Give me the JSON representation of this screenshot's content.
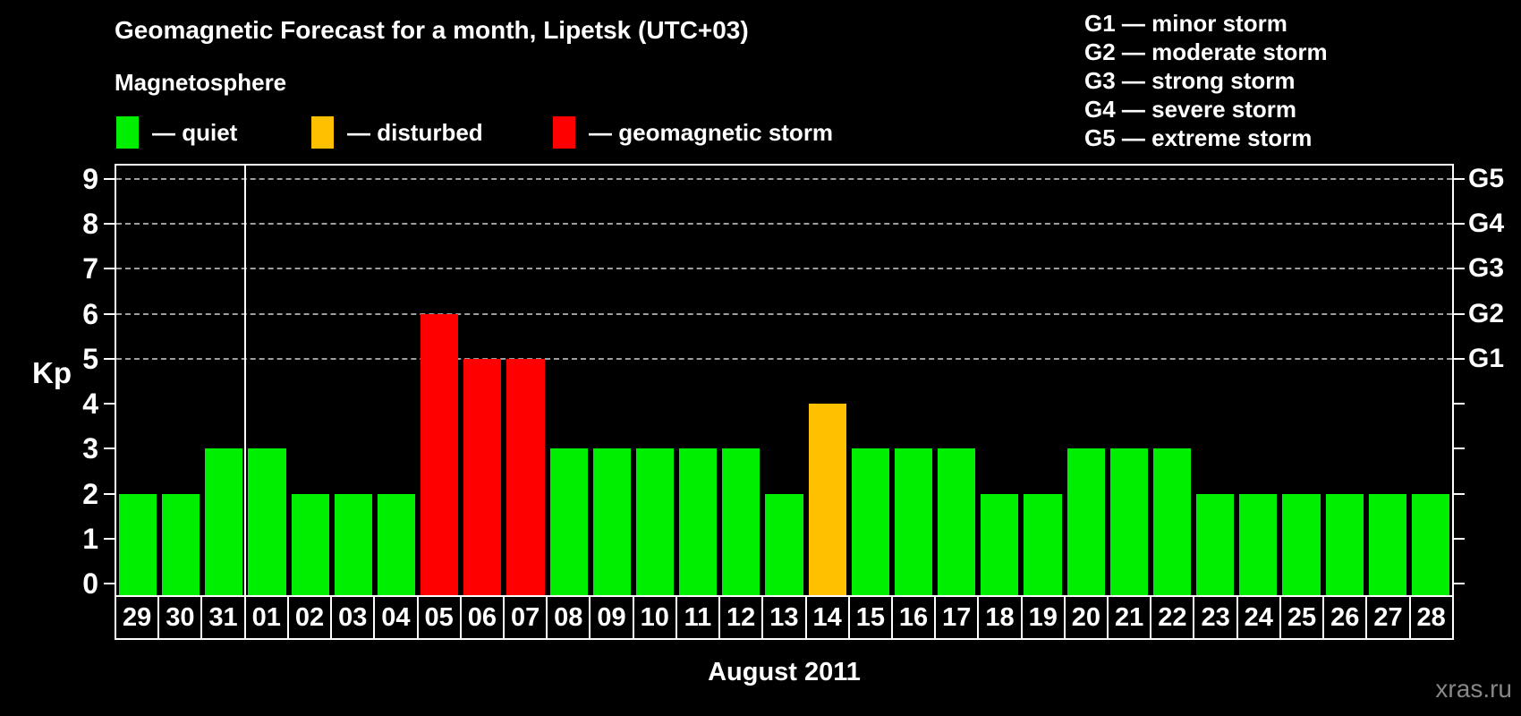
{
  "title": "Geomagnetic Forecast for a month, Lipetsk (UTC+03)",
  "legend": {
    "heading": "Magnetosphere",
    "items": [
      {
        "status": "quiet",
        "label": "— quiet",
        "color": "#00ee00"
      },
      {
        "status": "disturbed",
        "label": "— disturbed",
        "color": "#ffc000"
      },
      {
        "status": "storm",
        "label": "— geomagnetic storm",
        "color": "#ff0000"
      }
    ]
  },
  "g_scale_legend": [
    "G1 — minor storm",
    "G2 — moderate storm",
    "G3 — strong storm",
    "G4 — severe storm",
    "G5 — extreme storm"
  ],
  "watermark": "xras.ru",
  "chart_data": {
    "type": "bar",
    "title": "Geomagnetic Forecast for a month, Lipetsk (UTC+03)",
    "xlabel": "August 2011",
    "ylabel": "Kp",
    "ylim": [
      0,
      9
    ],
    "yticks": [
      0,
      1,
      2,
      3,
      4,
      5,
      6,
      7,
      8,
      9
    ],
    "gridlines_at": [
      5,
      6,
      7,
      8,
      9
    ],
    "grid": "dashed",
    "right_axis": [
      {
        "kp": 5,
        "label": "G1"
      },
      {
        "kp": 6,
        "label": "G2"
      },
      {
        "kp": 7,
        "label": "G3"
      },
      {
        "kp": 8,
        "label": "G4"
      },
      {
        "kp": 9,
        "label": "G5"
      }
    ],
    "month_separator_after_index": 2,
    "categories": [
      "29",
      "30",
      "31",
      "01",
      "02",
      "03",
      "04",
      "05",
      "06",
      "07",
      "08",
      "09",
      "10",
      "11",
      "12",
      "13",
      "14",
      "15",
      "16",
      "17",
      "18",
      "19",
      "20",
      "21",
      "22",
      "23",
      "24",
      "25",
      "26",
      "27",
      "28"
    ],
    "values": [
      2,
      2,
      3,
      3,
      2,
      2,
      2,
      6,
      5,
      5,
      3,
      3,
      3,
      3,
      3,
      2,
      4,
      3,
      3,
      3,
      2,
      2,
      3,
      3,
      3,
      2,
      2,
      2,
      2,
      2,
      2
    ],
    "statuses": [
      "quiet",
      "quiet",
      "quiet",
      "quiet",
      "quiet",
      "quiet",
      "quiet",
      "storm",
      "storm",
      "storm",
      "quiet",
      "quiet",
      "quiet",
      "quiet",
      "quiet",
      "quiet",
      "disturbed",
      "quiet",
      "quiet",
      "quiet",
      "quiet",
      "quiet",
      "quiet",
      "quiet",
      "quiet",
      "quiet",
      "quiet",
      "quiet",
      "quiet",
      "quiet",
      "quiet"
    ],
    "colors_by_status": {
      "quiet": "#00ee00",
      "disturbed": "#ffc000",
      "storm": "#ff0000"
    },
    "background": "#000000",
    "text_color": "#ffffff",
    "gridline_color": "#9e9e9e"
  }
}
